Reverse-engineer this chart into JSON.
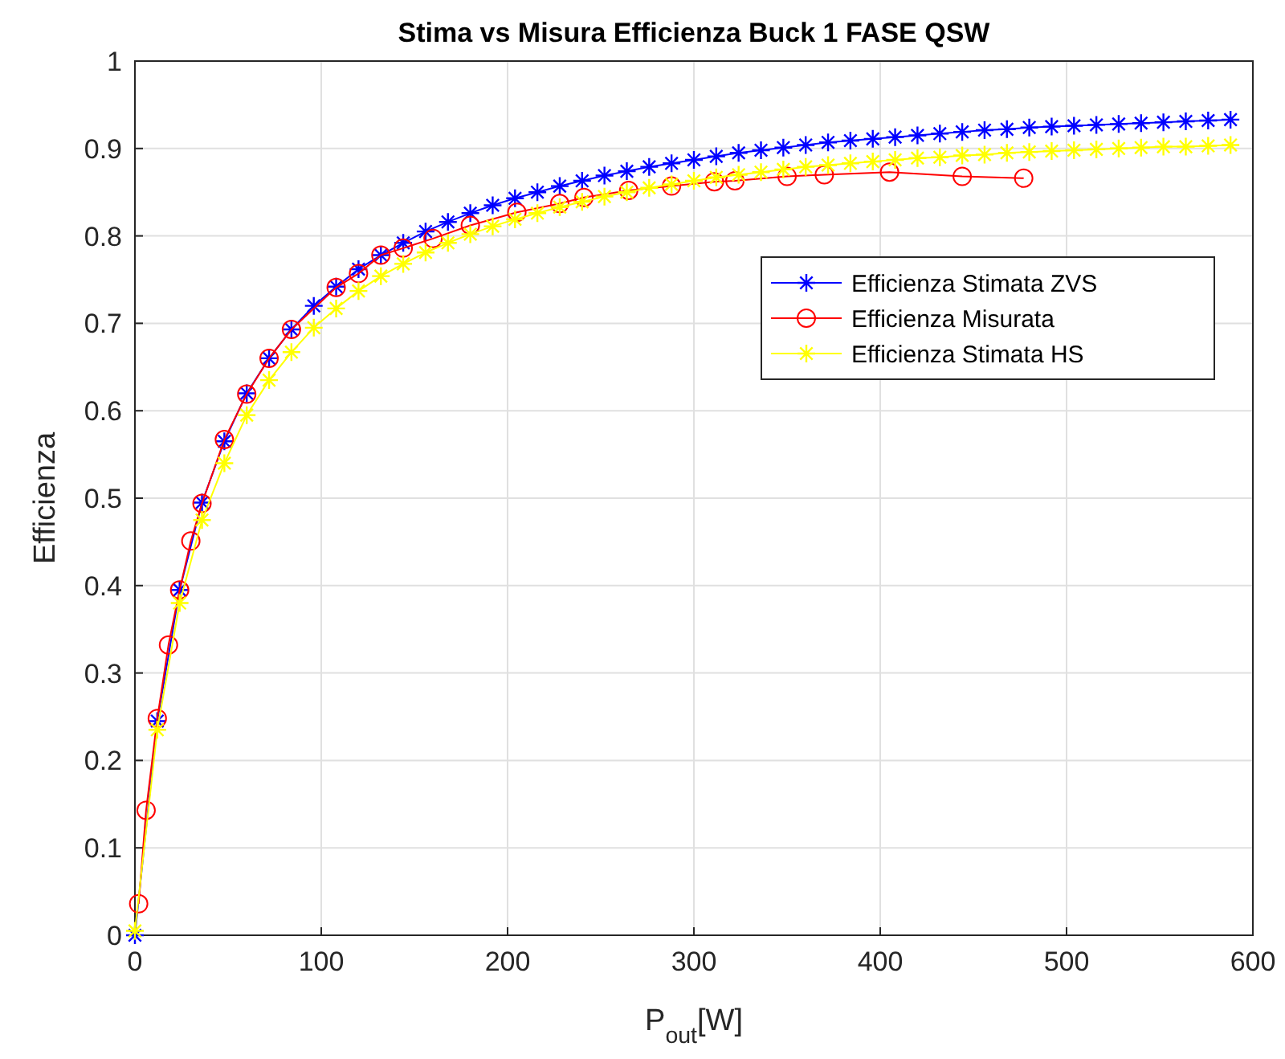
{
  "chart_data": {
    "type": "line",
    "title": "Stima vs Misura Efficienza Buck 1 FASE QSW",
    "xlabel": "P$_{out}$[W]",
    "ylabel": "Efficienza",
    "xlim": [
      0,
      600
    ],
    "ylim": [
      0,
      1
    ],
    "xticks": [
      0,
      100,
      200,
      300,
      400,
      500,
      600
    ],
    "yticks": [
      0,
      0.1,
      0.2,
      0.3,
      0.4,
      0.5,
      0.6,
      0.7,
      0.8,
      0.9,
      1
    ],
    "grid": true,
    "legend": "right",
    "line_style": "solid",
    "series": [
      {
        "name": "Efficienza Stimata ZVS",
        "color": "#0000ff",
        "marker": "cross",
        "x": [
          0,
          12,
          24,
          36,
          48,
          60,
          72,
          84,
          96,
          108,
          120,
          132,
          144,
          156,
          168,
          180,
          192,
          204,
          216,
          228,
          240,
          252,
          264,
          276,
          288,
          300,
          312,
          324,
          336,
          348,
          360,
          372,
          384,
          396,
          408,
          420,
          432,
          444,
          456,
          468,
          480,
          492,
          504,
          516,
          528,
          540,
          552,
          564,
          576,
          588
        ],
        "values": [
          0,
          0.245,
          0.395,
          0.495,
          0.565,
          0.62,
          0.66,
          0.693,
          0.72,
          0.742,
          0.762,
          0.778,
          0.792,
          0.805,
          0.816,
          0.826,
          0.835,
          0.843,
          0.85,
          0.857,
          0.863,
          0.869,
          0.874,
          0.879,
          0.883,
          0.887,
          0.891,
          0.895,
          0.898,
          0.901,
          0.904,
          0.907,
          0.909,
          0.911,
          0.913,
          0.915,
          0.917,
          0.919,
          0.921,
          0.922,
          0.924,
          0.925,
          0.926,
          0.927,
          0.928,
          0.929,
          0.93,
          0.931,
          0.932,
          0.933
        ]
      },
      {
        "name": "Efficienza Misurata",
        "color": "#ff0000",
        "marker": "circle",
        "x": [
          2,
          6,
          12,
          18,
          24,
          30,
          36,
          48,
          60,
          72,
          84,
          108,
          120,
          132,
          144,
          160,
          180,
          205,
          228,
          241,
          265,
          288,
          311,
          322,
          350,
          370,
          405,
          444,
          477
        ],
        "values": [
          0.036,
          0.143,
          0.248,
          0.332,
          0.395,
          0.451,
          0.494,
          0.567,
          0.619,
          0.66,
          0.693,
          0.741,
          0.757,
          0.778,
          0.786,
          0.797,
          0.812,
          0.827,
          0.837,
          0.844,
          0.852,
          0.857,
          0.862,
          0.863,
          0.868,
          0.87,
          0.873,
          0.868,
          0.866
        ]
      },
      {
        "name": "Efficienza Stimata HS",
        "color": "#ffff00",
        "marker": "cross",
        "x": [
          0,
          12,
          24,
          36,
          48,
          60,
          72,
          84,
          96,
          108,
          120,
          132,
          144,
          156,
          168,
          180,
          192,
          204,
          216,
          228,
          240,
          252,
          264,
          276,
          288,
          300,
          312,
          324,
          336,
          348,
          360,
          372,
          384,
          396,
          408,
          420,
          432,
          444,
          456,
          468,
          480,
          492,
          504,
          516,
          528,
          540,
          552,
          564,
          576,
          588
        ],
        "values": [
          0.005,
          0.235,
          0.38,
          0.475,
          0.54,
          0.595,
          0.635,
          0.667,
          0.695,
          0.717,
          0.737,
          0.754,
          0.768,
          0.781,
          0.792,
          0.802,
          0.811,
          0.819,
          0.826,
          0.833,
          0.839,
          0.845,
          0.85,
          0.855,
          0.859,
          0.863,
          0.867,
          0.87,
          0.873,
          0.876,
          0.879,
          0.881,
          0.883,
          0.885,
          0.887,
          0.889,
          0.89,
          0.892,
          0.893,
          0.895,
          0.896,
          0.897,
          0.898,
          0.899,
          0.9,
          0.901,
          0.902,
          0.902,
          0.903,
          0.904
        ]
      }
    ]
  }
}
